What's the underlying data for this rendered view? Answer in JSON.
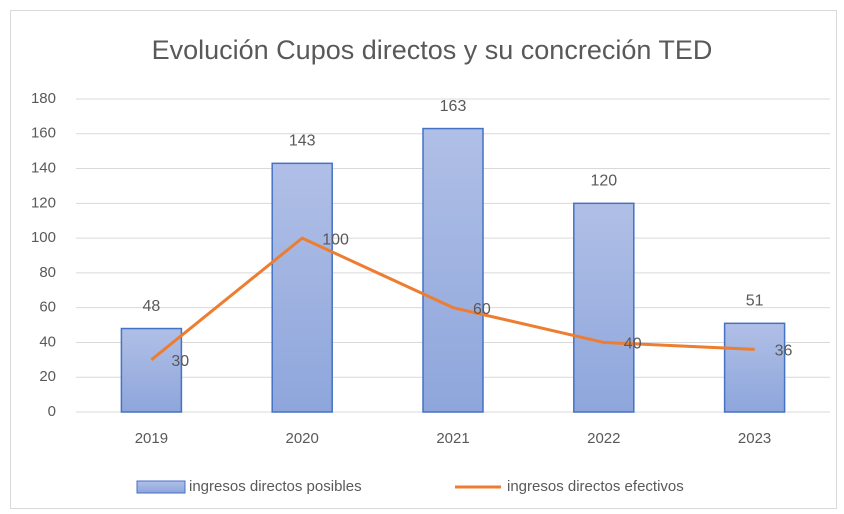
{
  "chart_data": {
    "type": "bar",
    "title": "Evolución  Cupos  directos  y su  concreción  TED",
    "categories": [
      "2019",
      "2020",
      "2021",
      "2022",
      "2023"
    ],
    "series": [
      {
        "name": "ingresos directos posibles",
        "type": "bar",
        "color": "#8faadc",
        "values": [
          48,
          143,
          163,
          120,
          51
        ]
      },
      {
        "name": "ingresos directos efectivos",
        "type": "line",
        "color": "#ed7d31",
        "values": [
          30,
          100,
          60,
          40,
          36
        ]
      }
    ],
    "ylim": [
      0,
      180
    ],
    "yticks": [
      0,
      20,
      40,
      60,
      80,
      100,
      120,
      140,
      160,
      180
    ],
    "grid": true,
    "legend": "bottom"
  }
}
